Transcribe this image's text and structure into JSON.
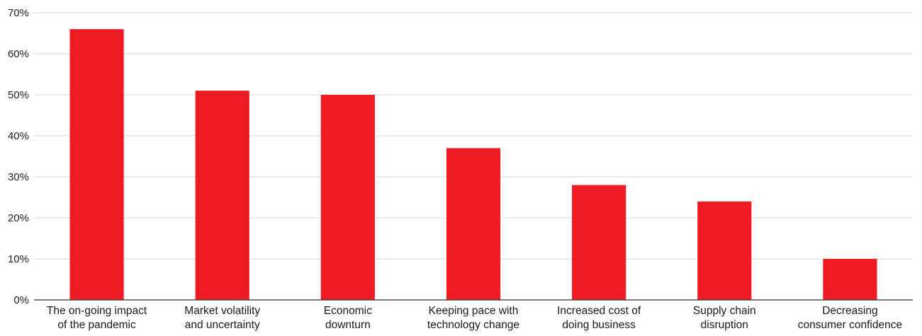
{
  "chart_data": {
    "type": "bar",
    "categories": [
      [
        "The on-going impact",
        "of the pandemic"
      ],
      [
        "Market volatility",
        "and uncertainty"
      ],
      [
        "Economic",
        "downturn"
      ],
      [
        "Keeping pace with",
        "technology change"
      ],
      [
        "Increased cost of",
        "doing business"
      ],
      [
        "Supply chain",
        "disruption"
      ],
      [
        "Decreasing",
        "consumer confidence"
      ]
    ],
    "values": [
      66,
      51,
      50,
      37,
      28,
      24,
      10
    ],
    "y_ticks": [
      "0%",
      "10%",
      "20%",
      "30%",
      "40%",
      "50%",
      "60%",
      "70%"
    ],
    "ylim": [
      0,
      70
    ],
    "grid": true,
    "colors": {
      "bar": "#ed1c24",
      "grid": "#d9d9d9",
      "axis": "#333333"
    }
  }
}
